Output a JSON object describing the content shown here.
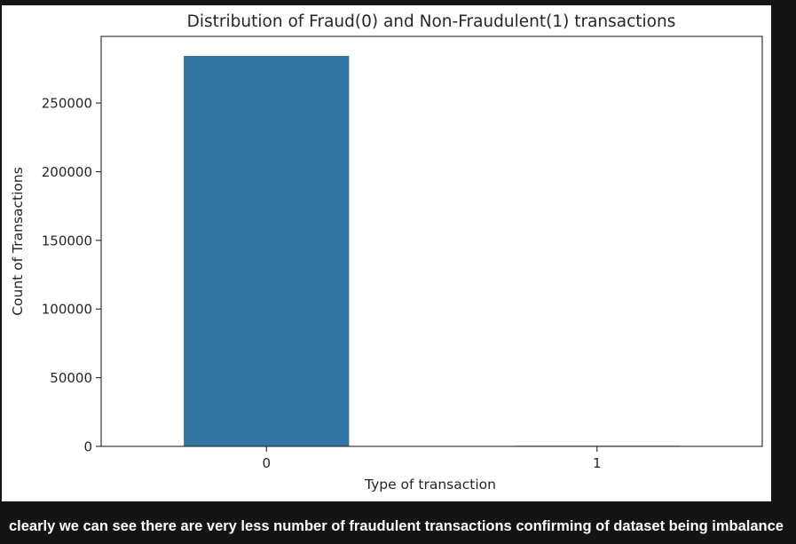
{
  "caption": "clearly we can see there are very less number of fraudulent transactions confirming of dataset being imbalance",
  "chart_data": {
    "type": "bar",
    "title": "Distribution of Fraud(0) and Non-Fraudulent(1) transactions",
    "xlabel": "Type of transaction",
    "ylabel": "Count of Transactions",
    "categories": [
      "0",
      "1"
    ],
    "values": [
      284315,
      492
    ],
    "colors": [
      "#3274a1",
      "#e1812c"
    ],
    "ylim": [
      0,
      298531
    ],
    "yticks": [
      0,
      50000,
      100000,
      150000,
      200000,
      250000
    ],
    "ytick_labels": [
      "0",
      "50000",
      "100000",
      "150000",
      "200000",
      "250000"
    ],
    "grid": false,
    "legend": "none"
  }
}
